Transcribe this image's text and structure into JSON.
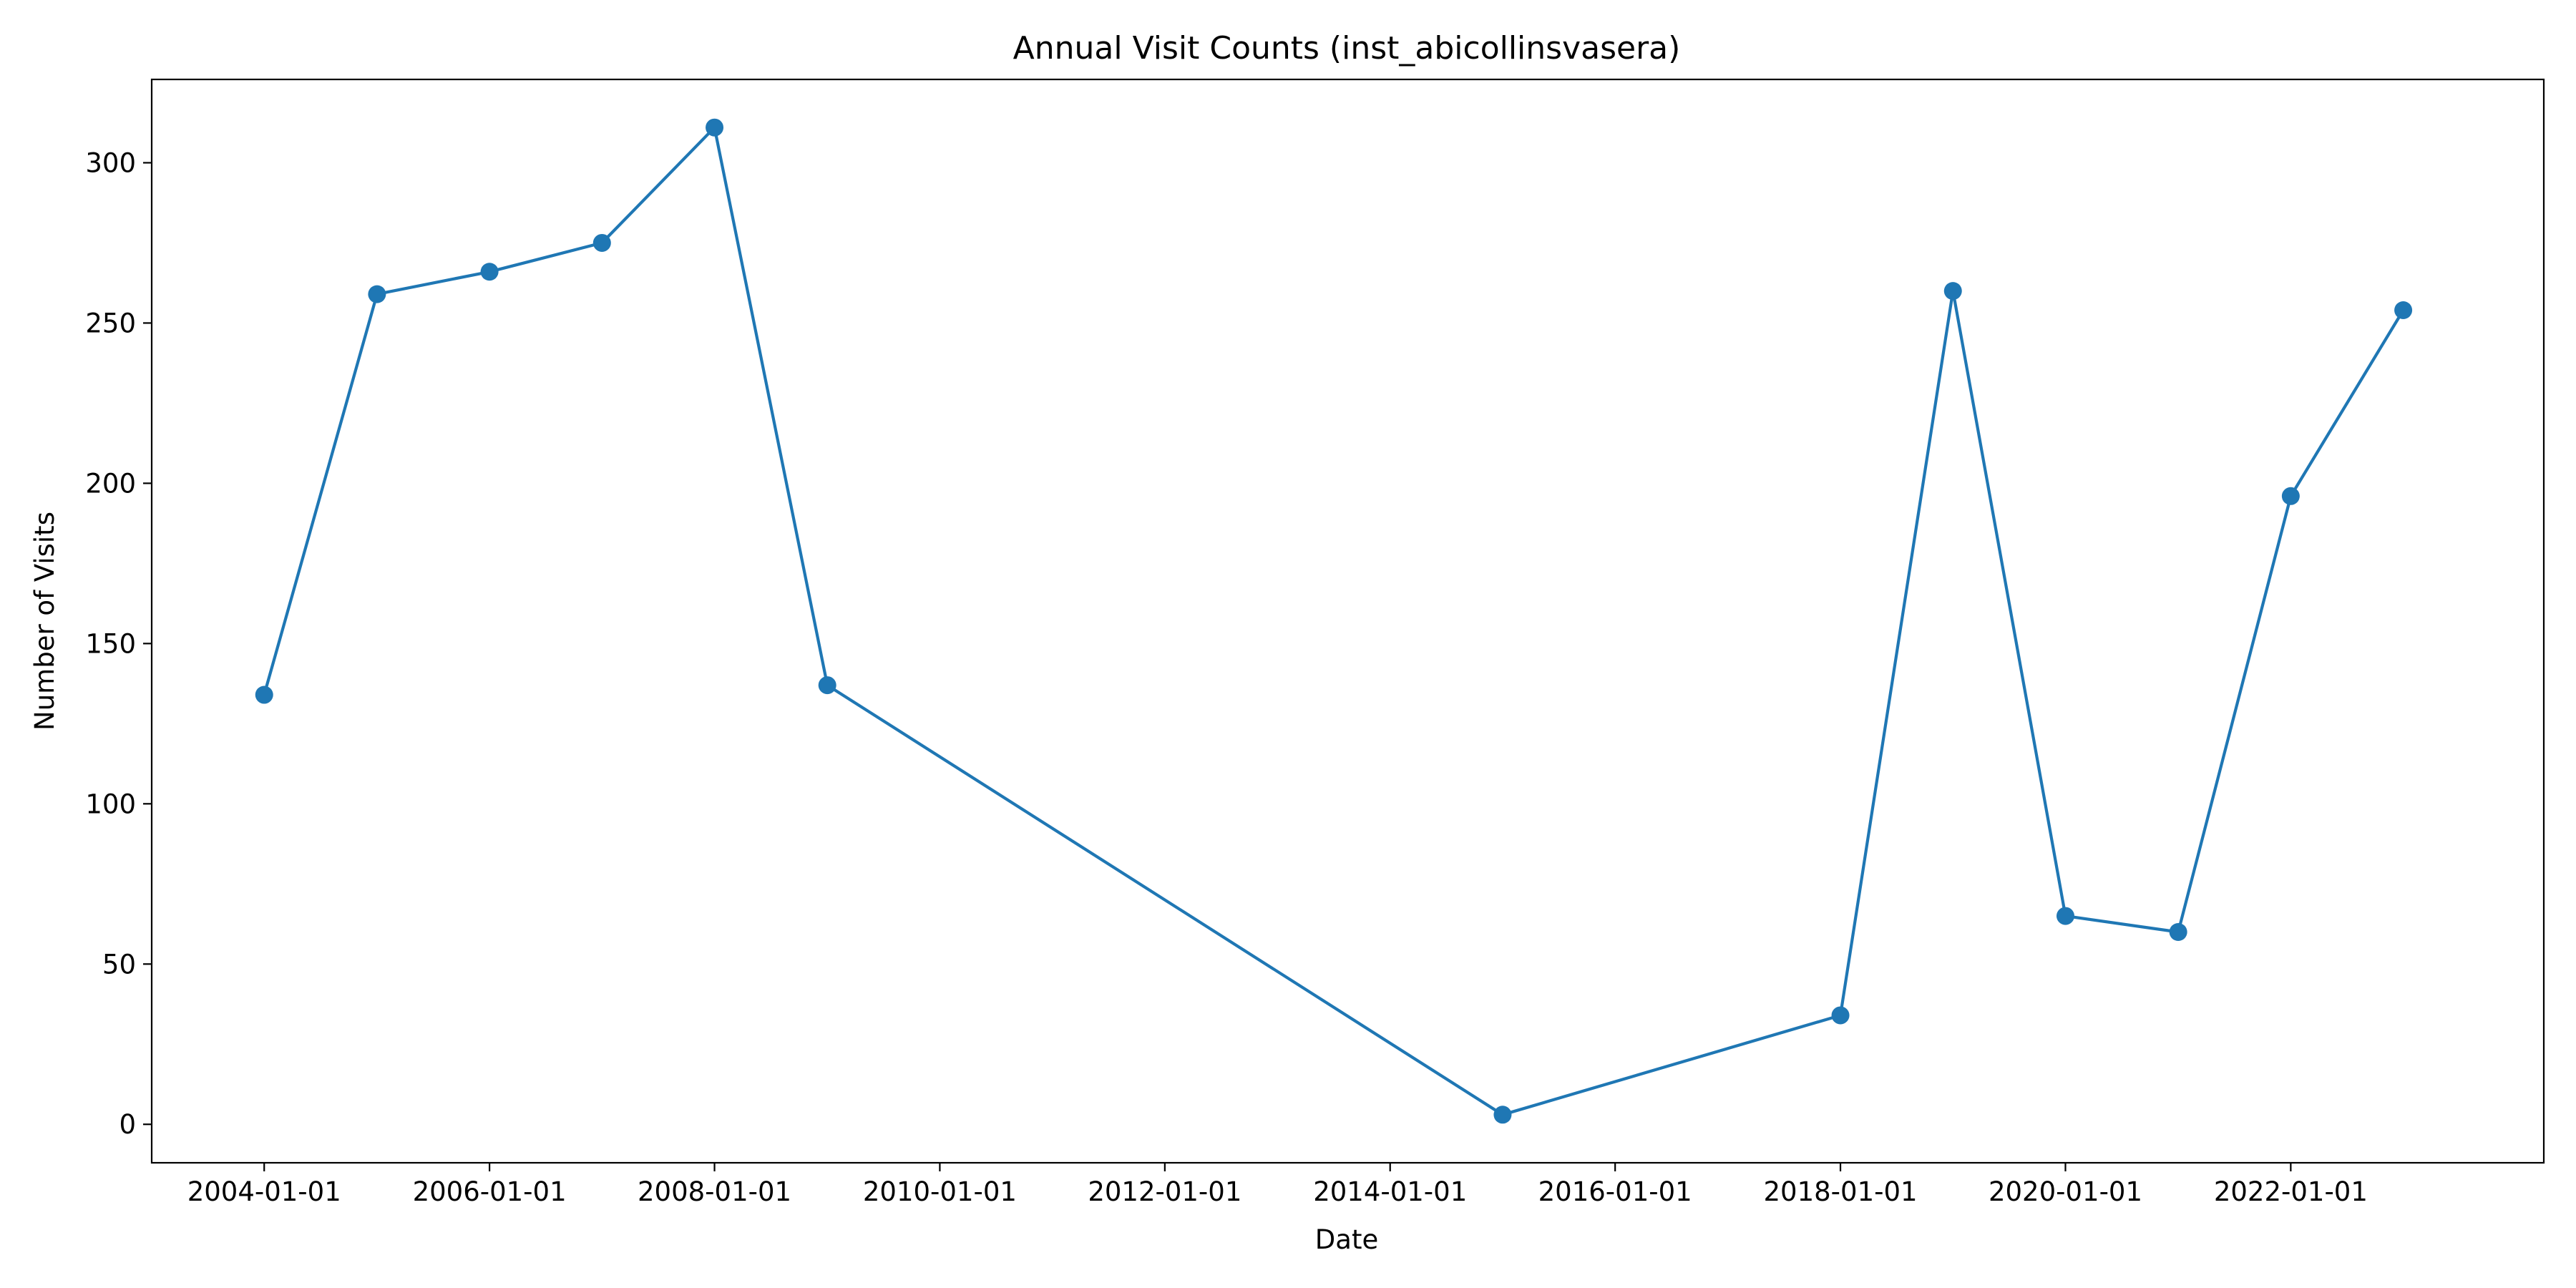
{
  "chart_data": {
    "type": "line",
    "title": "Annual Visit Counts (inst_abicollinsvasera)",
    "xlabel": "Date",
    "ylabel": "Number of Visits",
    "x_tick_labels": [
      "2004-01-01",
      "2006-01-01",
      "2008-01-01",
      "2010-01-01",
      "2012-01-01",
      "2014-01-01",
      "2016-01-01",
      "2018-01-01",
      "2020-01-01",
      "2022-01-01"
    ],
    "y_tick_labels": [
      "0",
      "50",
      "100",
      "150",
      "200",
      "250",
      "300"
    ],
    "ylim": [
      -12,
      326
    ],
    "xlim": [
      "2003-01-01",
      "2024-04-01"
    ],
    "grid": false,
    "legend": "none",
    "series": [
      {
        "color": "#1f77b4",
        "marker": "circle",
        "points": [
          {
            "x": "2004-01-01",
            "y": 134
          },
          {
            "x": "2005-01-01",
            "y": 259
          },
          {
            "x": "2006-01-01",
            "y": 266
          },
          {
            "x": "2007-01-01",
            "y": 275
          },
          {
            "x": "2008-01-01",
            "y": 311
          },
          {
            "x": "2009-01-01",
            "y": 137
          },
          {
            "x": "2015-01-01",
            "y": 3
          },
          {
            "x": "2018-01-01",
            "y": 34
          },
          {
            "x": "2019-01-01",
            "y": 260
          },
          {
            "x": "2020-01-01",
            "y": 65
          },
          {
            "x": "2021-01-01",
            "y": 60
          },
          {
            "x": "2022-01-01",
            "y": 196
          },
          {
            "x": "2023-01-01",
            "y": 254
          }
        ]
      }
    ]
  }
}
